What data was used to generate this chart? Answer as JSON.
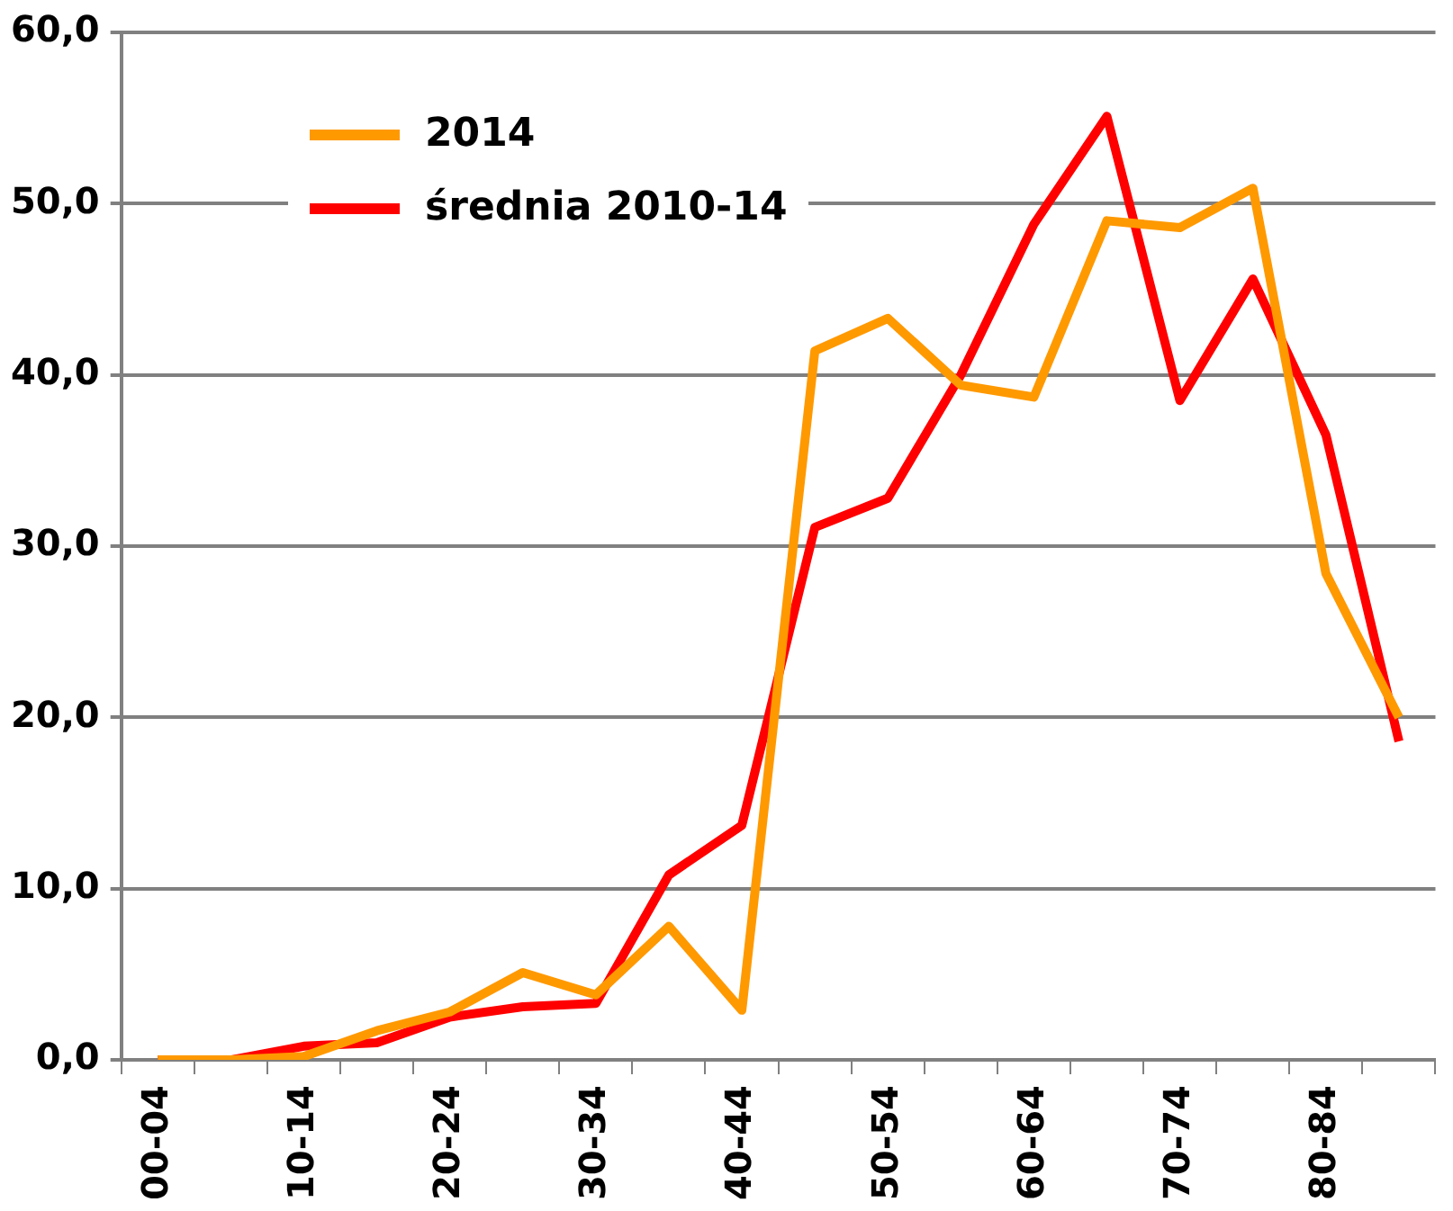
{
  "chart_data": {
    "type": "line",
    "categories": [
      "00-04",
      null,
      "10-14",
      null,
      "20-24",
      null,
      "30-34",
      null,
      "40-44",
      null,
      "50-54",
      null,
      "60-64",
      null,
      "70-74",
      null,
      "80-84",
      null
    ],
    "series": [
      {
        "name": "2014",
        "color": "#ff9900",
        "values": [
          0,
          0,
          0.2,
          1.7,
          2.8,
          5.1,
          3.8,
          7.8,
          2.9,
          41.4,
          43.3,
          39.4,
          38.7,
          49.0,
          48.6,
          50.9,
          28.4,
          20.0
        ]
      },
      {
        "name": "średnia 2010-14",
        "color": "#ff0000",
        "values": [
          0,
          0,
          0.8,
          1.0,
          2.5,
          3.1,
          3.3,
          10.8,
          13.7,
          31.1,
          32.8,
          40.0,
          48.8,
          55.1,
          38.5,
          45.6,
          36.5,
          18.6
        ]
      }
    ],
    "ylim": [
      0,
      60
    ],
    "yticks": [
      {
        "value": 0,
        "label": "0,0"
      },
      {
        "value": 10,
        "label": "10,0"
      },
      {
        "value": 20,
        "label": "20,0"
      },
      {
        "value": 30,
        "label": "30,0"
      },
      {
        "value": 40,
        "label": "40,0"
      },
      {
        "value": 50,
        "label": "50,0"
      },
      {
        "value": 60,
        "label": "60,0"
      }
    ],
    "grid": "y",
    "legend": "top left",
    "marker": "none",
    "line_style": "solid"
  }
}
